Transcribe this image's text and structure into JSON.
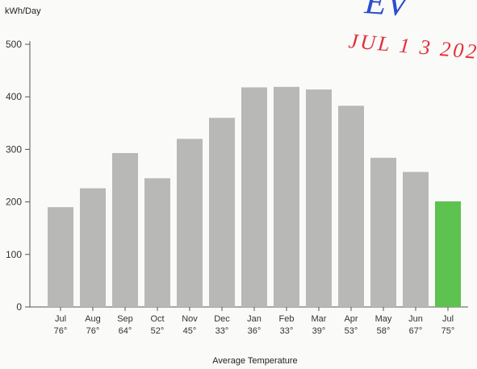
{
  "stamp": {
    "word": "EV",
    "date": "JUL 1 3 202"
  },
  "chart_data": {
    "type": "bar",
    "ylabel": "kWh/Day",
    "xlabel": "Average Temperature",
    "ylim": [
      0,
      500
    ],
    "yticks": [
      "0",
      "100",
      "200",
      "300",
      "400",
      "500"
    ],
    "grid": false,
    "categories": [
      "Jul",
      "Aug",
      "Sep",
      "Oct",
      "Nov",
      "Dec",
      "Jan",
      "Feb",
      "Mar",
      "Apr",
      "May",
      "Jun",
      "Jul"
    ],
    "temperatures": [
      "76°",
      "76°",
      "64°",
      "52°",
      "45°",
      "33°",
      "36°",
      "33°",
      "39°",
      "53°",
      "58°",
      "67°",
      "75°"
    ],
    "values": [
      190,
      226,
      293,
      245,
      320,
      360,
      418,
      419,
      414,
      383,
      284,
      257,
      201
    ],
    "bar_color": "#b8b8b6",
    "highlight_color": "#5dc24f",
    "highlight_index": 12
  }
}
